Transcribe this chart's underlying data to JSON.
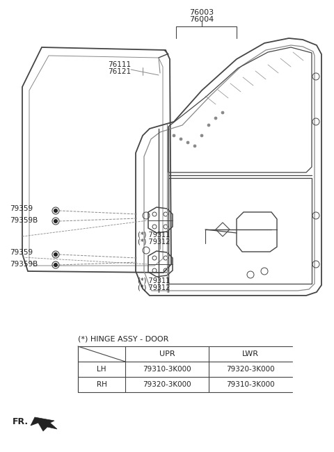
{
  "bg_color": "#ffffff",
  "label_76003": "76003",
  "label_76004": "76004",
  "label_76111": "76111",
  "label_76121": "76121",
  "label_79359_a": "79359",
  "label_79359B_a": "79359B",
  "label_79311_a": "(*) 79311",
  "label_79312_a": "(*) 79312",
  "label_79359_b": "79359",
  "label_79359B_b": "79359B",
  "label_79311_b": "(*) 79311",
  "label_79312_b": "(*) 79312",
  "hinge_label": "(*) HINGE ASSY - DOOR",
  "table_rows": [
    [
      "LH",
      "79310-3K000",
      "79320-3K000"
    ],
    [
      "RH",
      "79320-3K000",
      "79310-3K000"
    ]
  ],
  "fr_label": "FR.",
  "lc": "#444444",
  "llc": "#888888",
  "fc": "#222222"
}
